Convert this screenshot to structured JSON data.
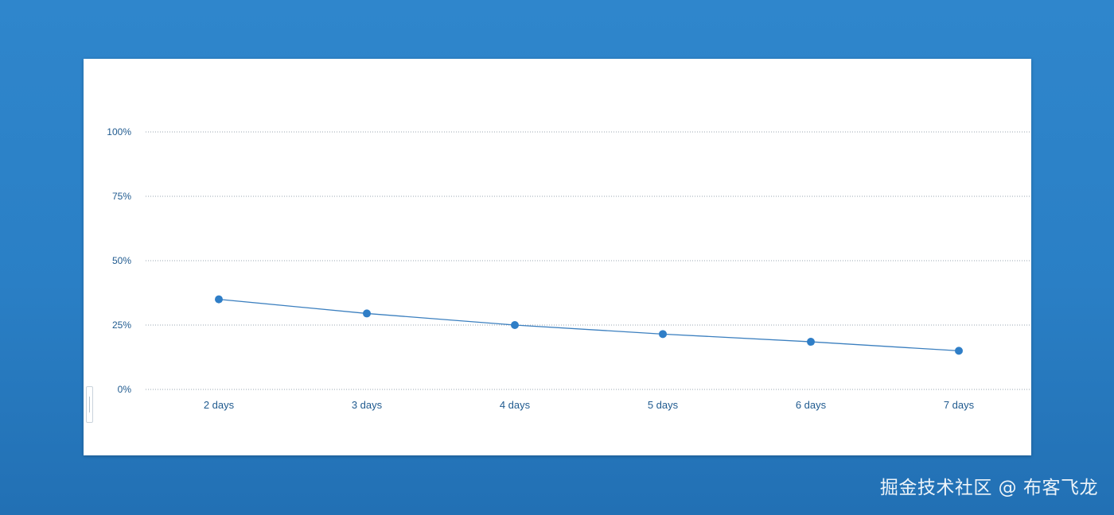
{
  "chart_data": {
    "type": "line",
    "categories": [
      "2 days",
      "3 days",
      "4 days",
      "5 days",
      "6 days",
      "7 days"
    ],
    "values": [
      35,
      29.5,
      25,
      21.5,
      18.5,
      15
    ],
    "y_ticks": [
      "0%",
      "25%",
      "50%",
      "75%",
      "100%"
    ],
    "y_tick_values": [
      0,
      25,
      50,
      75,
      100
    ],
    "ylim": [
      0,
      100
    ],
    "grid": true,
    "colors": {
      "line": "#3b7fbf",
      "point": "#2f7ec7",
      "grid": "#9aa6b2",
      "label": "#1f5a8f"
    }
  },
  "watermark": "掘金技术社区 @ 布客飞龙"
}
